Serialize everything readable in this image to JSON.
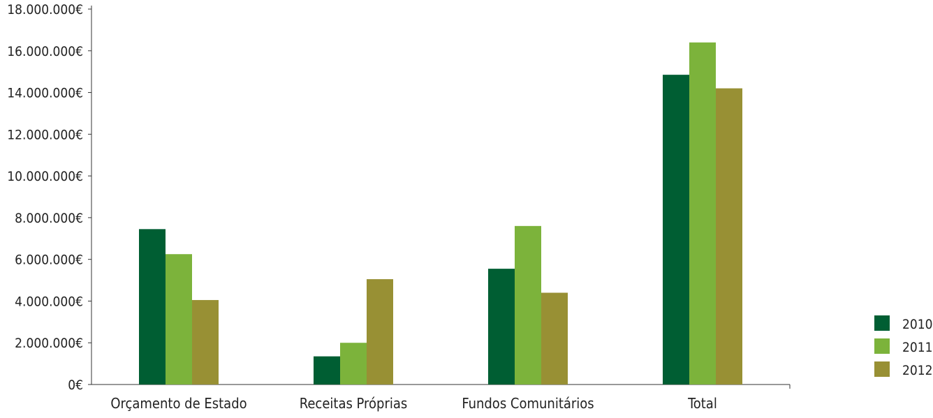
{
  "chart_data": {
    "type": "bar",
    "title": "",
    "xlabel": "",
    "ylabel": "",
    "categories": [
      "Orçamento de Estado",
      "Receitas Próprias",
      "Fundos Comunitários",
      "Total"
    ],
    "series": [
      {
        "name": "2010",
        "color": "#005E33",
        "values": [
          7450000,
          1350000,
          5550000,
          14850000
        ]
      },
      {
        "name": "2011",
        "color": "#7CB33B",
        "values": [
          6250000,
          2000000,
          7600000,
          16400000
        ]
      },
      {
        "name": "2012",
        "color": "#989034",
        "values": [
          4050000,
          5050000,
          4400000,
          14200000
        ]
      }
    ],
    "ylim": [
      0,
      18000000
    ],
    "yticks": [
      0,
      2000000,
      4000000,
      6000000,
      8000000,
      10000000,
      12000000,
      14000000,
      16000000,
      18000000
    ],
    "ytick_labels": [
      "0€",
      "2.000.000€",
      "4.000.000€",
      "6.000.000€",
      "8.000.000€",
      "10.000.000€",
      "12.000.000€",
      "14.000.000€",
      "16.000.000€",
      "18.000.000€"
    ],
    "grid": false,
    "legend_position": "right"
  }
}
